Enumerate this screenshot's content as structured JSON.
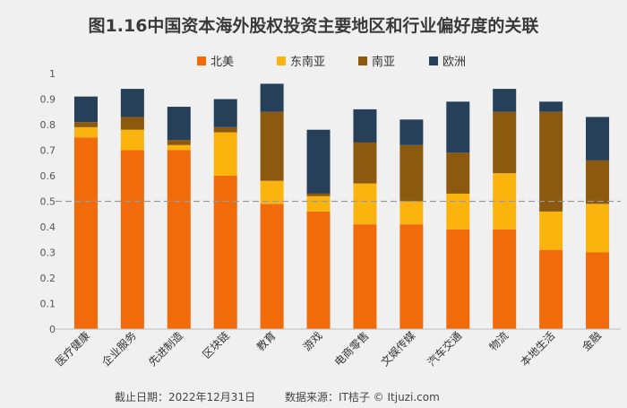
{
  "chart_data": {
    "type": "bar",
    "stacked": true,
    "title": "图1.16中国资本海外股权投资主要地区和行业偏好度的关联",
    "categories": [
      "医疗健康",
      "企业服务",
      "先进制造",
      "区块链",
      "教育",
      "游戏",
      "电商零售",
      "文娱传媒",
      "汽车交通",
      "物流",
      "本地生活",
      "金融"
    ],
    "series": [
      {
        "name": "北美",
        "color": "#f26b0a",
        "values": [
          0.75,
          0.7,
          0.7,
          0.6,
          0.49,
          0.46,
          0.41,
          0.41,
          0.39,
          0.39,
          0.31,
          0.3
        ]
      },
      {
        "name": "东南亚",
        "color": "#fbb40e",
        "values": [
          0.04,
          0.08,
          0.02,
          0.17,
          0.09,
          0.06,
          0.16,
          0.09,
          0.14,
          0.22,
          0.15,
          0.19
        ]
      },
      {
        "name": "南亚",
        "color": "#8b5a0e",
        "values": [
          0.02,
          0.05,
          0.02,
          0.02,
          0.27,
          0.01,
          0.16,
          0.22,
          0.16,
          0.24,
          0.39,
          0.17
        ]
      },
      {
        "name": "欧洲",
        "color": "#27405a",
        "values": [
          0.1,
          0.11,
          0.13,
          0.11,
          0.11,
          0.25,
          0.13,
          0.1,
          0.2,
          0.09,
          0.04,
          0.17
        ]
      }
    ],
    "ylim": [
      0,
      1
    ],
    "yticks": [
      0,
      0.1,
      0.2,
      0.3,
      0.4,
      0.5,
      0.6,
      0.7,
      0.8,
      0.9,
      1
    ],
    "ytick_labels": [
      "0",
      "0.1",
      "0.2",
      "0.3",
      "0.4",
      "0.5",
      "0.6",
      "0.7",
      "0.8",
      "0.9",
      "1"
    ],
    "reference_line": {
      "value": 0.5,
      "style": "dashed"
    },
    "legend_position": "top-center",
    "xlabel": "",
    "ylabel": ""
  },
  "footer": {
    "date_text": "截止日期：2022年12月31日",
    "source_text": "数据来源：IT桔子 © Itjuzi.com"
  }
}
